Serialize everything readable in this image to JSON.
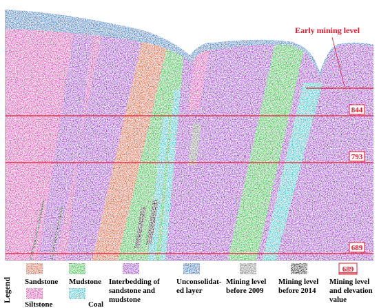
{
  "figure": {
    "annotation": "Early mining level",
    "elevation_labels": [
      "844",
      "793",
      "689"
    ],
    "legend": {
      "title": "Legend",
      "items": [
        {
          "key": "sandstone",
          "label": "Sandstone",
          "color": "#e0622e"
        },
        {
          "key": "mudstone",
          "label": "Mudstone",
          "color": "#22c23a"
        },
        {
          "key": "interbedding",
          "label": "Interbedding of sandstone and mudstone",
          "line1": "Interbedding of",
          "line2": "sandstone and",
          "line3": "mudstone",
          "color": "#a235d8"
        },
        {
          "key": "unconsolidated",
          "label": "Unconsolidated layer",
          "line1": "Unconsolidat-",
          "line2": "ed layer",
          "color": "#2e7fc6"
        },
        {
          "key": "mining2009",
          "label": "Mining level before 2009",
          "line1": "Mining level",
          "line2": "before 2009",
          "color": "#8a8a8a"
        },
        {
          "key": "mining2014",
          "label": "Mining level before 2014",
          "line1": "Mining level",
          "line2": "before 2014",
          "color": "#1e1e1e"
        },
        {
          "key": "elevation",
          "label": "Mining level and elevation value",
          "line1": "Mining level",
          "line2": "and elevation",
          "line3": "value",
          "sample": "689",
          "color": "#e8192c"
        },
        {
          "key": "siltstone",
          "label": "Siltstone",
          "color": "#e23fb6"
        },
        {
          "key": "coal",
          "label": "Coal",
          "color": "#20c7cf"
        }
      ]
    }
  }
}
